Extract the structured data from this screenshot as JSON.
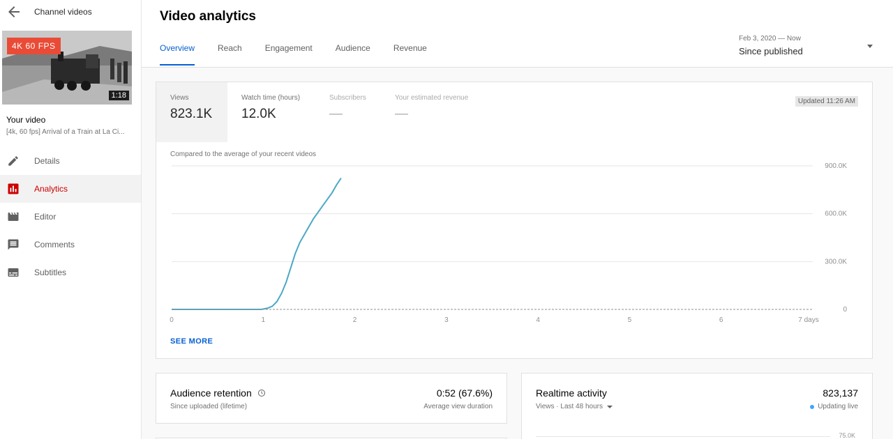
{
  "sidebar": {
    "header_title": "Channel videos",
    "thumb_badge": "4K 60 FPS",
    "thumb_duration": "1:18",
    "your_video_label": "Your video",
    "video_title": "[4k, 60 fps] Arrival of a Train at La Ci...",
    "items": [
      {
        "label": "Details",
        "icon": "pencil-icon",
        "active": false
      },
      {
        "label": "Analytics",
        "icon": "analytics-icon",
        "active": true
      },
      {
        "label": "Editor",
        "icon": "clapperboard-icon",
        "active": false
      },
      {
        "label": "Comments",
        "icon": "comment-icon",
        "active": false
      },
      {
        "label": "Subtitles",
        "icon": "subtitles-icon",
        "active": false
      }
    ]
  },
  "header": {
    "title": "Video analytics",
    "tabs": [
      {
        "label": "Overview",
        "active": true
      },
      {
        "label": "Reach",
        "active": false
      },
      {
        "label": "Engagement",
        "active": false
      },
      {
        "label": "Audience",
        "active": false
      },
      {
        "label": "Revenue",
        "active": false
      }
    ],
    "date_range": "Feb 3, 2020 — Now",
    "date_label": "Since published"
  },
  "overview": {
    "metrics": [
      {
        "label": "Views",
        "value": "823.1K",
        "active": true
      },
      {
        "label": "Watch time (hours)",
        "value": "12.0K",
        "active": false
      },
      {
        "label": "Subscribers",
        "value": "—",
        "active": false
      },
      {
        "label": "Your estimated revenue",
        "value": "—",
        "active": false
      }
    ],
    "updated": "Updated 11:26 AM",
    "compared_text": "Compared to the average of your recent videos",
    "see_more": "SEE MORE"
  },
  "chart_data": {
    "type": "line",
    "title": "",
    "xlabel": "",
    "ylabel": "",
    "x_ticks": [
      "0",
      "1",
      "2",
      "3",
      "4",
      "5",
      "6",
      "7 days"
    ],
    "y_ticks": [
      "0",
      "300.0K",
      "600.0K",
      "900.0K"
    ],
    "xlim": [
      0,
      7
    ],
    "ylim": [
      0,
      900000
    ],
    "grid": true,
    "series": [
      {
        "name": "",
        "style": "solid",
        "color": "#4ba8c6",
        "points": [
          [
            0,
            0
          ],
          [
            0.5,
            0
          ],
          [
            0.98,
            0
          ],
          [
            1.05,
            8000
          ],
          [
            1.1,
            20000
          ],
          [
            1.15,
            50000
          ],
          [
            1.2,
            100000
          ],
          [
            1.25,
            170000
          ],
          [
            1.3,
            260000
          ],
          [
            1.35,
            350000
          ],
          [
            1.4,
            420000
          ],
          [
            1.45,
            470000
          ],
          [
            1.5,
            520000
          ],
          [
            1.55,
            570000
          ],
          [
            1.6,
            610000
          ],
          [
            1.65,
            650000
          ],
          [
            1.7,
            690000
          ],
          [
            1.75,
            730000
          ],
          [
            1.8,
            780000
          ],
          [
            1.85,
            823100
          ]
        ]
      },
      {
        "name": "",
        "style": "dashed",
        "color": "#909090",
        "points": [
          [
            0,
            0
          ],
          [
            7,
            0
          ]
        ]
      }
    ]
  },
  "retention": {
    "title": "Audience retention",
    "subtitle": "Since uploaded (lifetime)",
    "value": "0:52 (67.6%)",
    "value_label": "Average view duration"
  },
  "realtime": {
    "title": "Realtime activity",
    "subtitle": "Views · Last 48 hours",
    "value": "823,137",
    "status": "Updating live",
    "axis_top": "75.0K"
  },
  "colors": {
    "accent": "#065fd4",
    "active_nav": "#cc0000",
    "badge": "#e94b36",
    "line": "#4ba8c6"
  }
}
